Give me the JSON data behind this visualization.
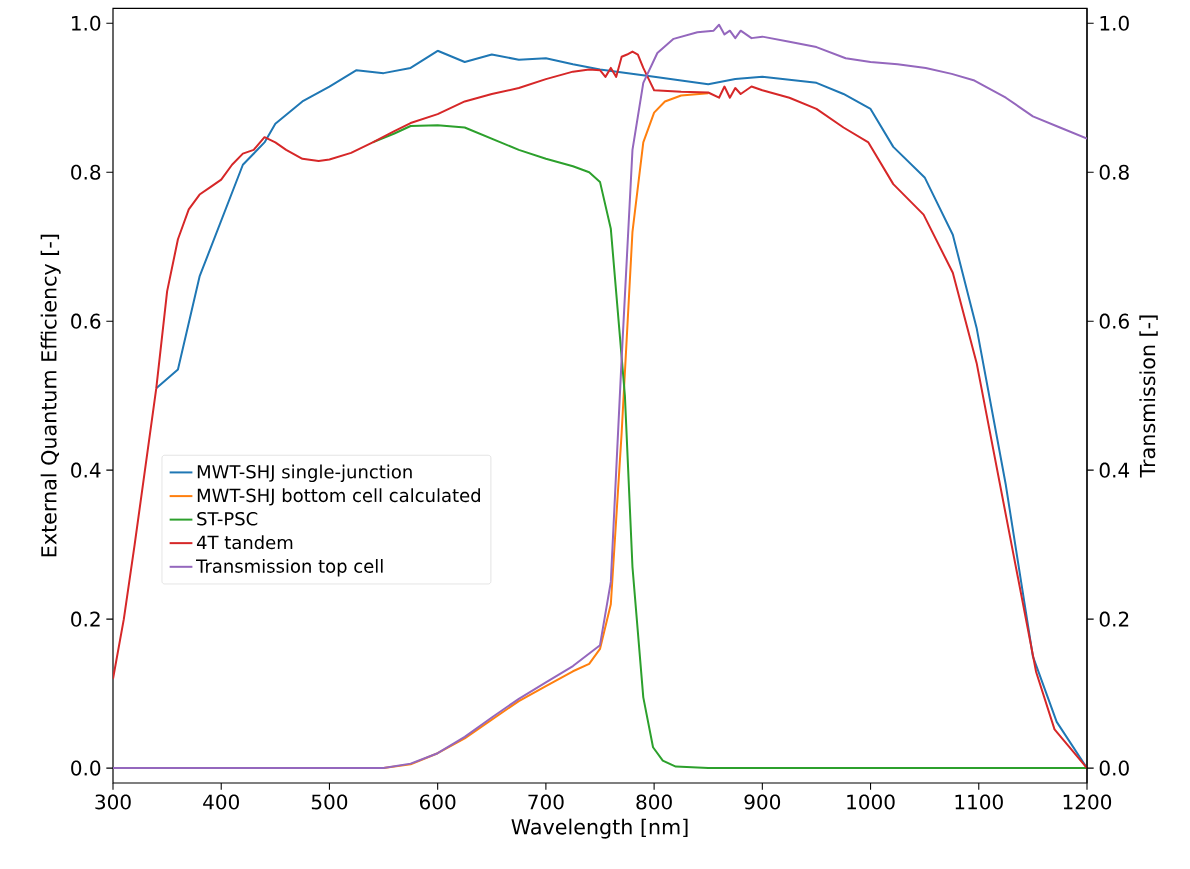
{
  "chart_data": {
    "type": "line",
    "xlabel": "Wavelength [nm]",
    "ylabel": "External Quantum Efficiency [-]",
    "y2label": "Transmission [-]",
    "xlim": [
      300,
      1200
    ],
    "xticks": [
      300,
      400,
      500,
      600,
      700,
      800,
      900,
      1000,
      1100,
      1200
    ],
    "ylim": [
      -0.02,
      1.02
    ],
    "yticks": [
      {
        "value": 0,
        "label": "0.0"
      },
      {
        "value": 0.2,
        "label": "0.2"
      },
      {
        "value": 0.4,
        "label": "0.4"
      },
      {
        "value": 0.6,
        "label": "0.6"
      },
      {
        "value": 0.8,
        "label": "0.8"
      },
      {
        "value": 1,
        "label": "1.0"
      }
    ],
    "y2lim": [
      -0.02,
      1.02
    ],
    "y2ticks": [
      {
        "value": 0,
        "label": "0.0"
      },
      {
        "value": 0.2,
        "label": "0.2"
      },
      {
        "value": 0.4,
        "label": "0.4"
      },
      {
        "value": 0.6,
        "label": "0.6"
      },
      {
        "value": 0.8,
        "label": "0.8"
      },
      {
        "value": 1,
        "label": "1.0"
      }
    ],
    "grid": false,
    "legend": "center left",
    "marker": "none",
    "line_style": "solid",
    "series": [
      {
        "name": "MWT-SHJ single-junction",
        "color": "#1f77b4",
        "x": [
          340,
          360,
          380,
          400,
          420,
          440,
          450,
          475,
          500,
          525,
          550,
          575,
          600,
          625,
          650,
          675,
          700,
          725,
          750,
          800,
          850,
          875,
          900,
          950,
          975,
          1000,
          1021,
          1050,
          1076,
          1098,
          1125,
          1150,
          1172,
          1200
        ],
        "values": [
          0.51,
          0.535,
          0.66,
          0.735,
          0.81,
          0.84,
          0.865,
          0.895,
          0.915,
          0.937,
          0.933,
          0.94,
          0.963,
          0.948,
          0.958,
          0.951,
          0.953,
          0.945,
          0.938,
          0.928,
          0.918,
          0.925,
          0.928,
          0.92,
          0.905,
          0.885,
          0.834,
          0.793,
          0.716,
          0.591,
          0.38,
          0.15,
          0.062,
          0.0
        ]
      },
      {
        "name": "MWT-SHJ bottom cell calculated",
        "color": "#ff7f0e",
        "x": [
          300,
          550,
          575,
          600,
          625,
          650,
          675,
          700,
          725,
          740,
          750,
          760,
          770,
          780,
          790,
          800,
          810,
          825,
          850
        ],
        "values": [
          0.0,
          0.0,
          0.005,
          0.02,
          0.04,
          0.065,
          0.09,
          0.11,
          0.13,
          0.14,
          0.16,
          0.22,
          0.45,
          0.72,
          0.84,
          0.88,
          0.895,
          0.903,
          0.906
        ]
      },
      {
        "name": "ST-PSC",
        "color": "#2ca02c",
        "x": [
          540,
          560,
          575,
          600,
          625,
          650,
          675,
          700,
          725,
          740,
          750,
          760,
          773,
          780,
          790,
          799,
          808,
          820,
          850,
          1200
        ],
        "values": [
          0.84,
          0.852,
          0.862,
          0.863,
          0.86,
          0.845,
          0.83,
          0.818,
          0.808,
          0.8,
          0.787,
          0.724,
          0.5,
          0.27,
          0.095,
          0.028,
          0.01,
          0.002,
          0.0,
          0.0
        ]
      },
      {
        "name": "4T tandem",
        "color": "#d62728",
        "x": [
          300,
          310,
          320,
          340,
          350,
          360,
          370,
          380,
          390,
          400,
          410,
          420,
          430,
          440,
          450,
          460,
          475,
          490,
          500,
          520,
          540,
          560,
          575,
          600,
          625,
          650,
          675,
          700,
          725,
          740,
          750,
          755,
          760,
          765,
          770,
          775,
          780,
          785,
          790,
          795,
          800,
          825,
          850,
          860,
          865,
          870,
          875,
          880,
          890,
          900,
          925,
          950,
          975,
          998,
          1021,
          1049,
          1076,
          1098,
          1125,
          1153,
          1170,
          1200
        ],
        "values": [
          0.12,
          0.2,
          0.3,
          0.51,
          0.64,
          0.71,
          0.75,
          0.77,
          0.78,
          0.79,
          0.81,
          0.825,
          0.83,
          0.847,
          0.84,
          0.83,
          0.818,
          0.815,
          0.817,
          0.826,
          0.84,
          0.855,
          0.866,
          0.878,
          0.895,
          0.905,
          0.913,
          0.925,
          0.935,
          0.938,
          0.937,
          0.928,
          0.94,
          0.928,
          0.955,
          0.958,
          0.962,
          0.958,
          0.94,
          0.925,
          0.91,
          0.908,
          0.907,
          0.9,
          0.915,
          0.9,
          0.913,
          0.905,
          0.915,
          0.91,
          0.9,
          0.885,
          0.86,
          0.84,
          0.784,
          0.743,
          0.665,
          0.544,
          0.34,
          0.129,
          0.052,
          0.0
        ]
      },
      {
        "name": "Transmission top cell",
        "color": "#9467bd",
        "axis": "y2",
        "x": [
          300,
          550,
          575,
          600,
          625,
          650,
          675,
          700,
          725,
          750,
          760,
          770,
          780,
          790,
          803,
          818,
          840,
          855,
          860,
          865,
          870,
          875,
          880,
          890,
          900,
          925,
          950,
          977,
          1000,
          1025,
          1051,
          1075,
          1096,
          1125,
          1150,
          1175,
          1200
        ],
        "values": [
          0.0,
          0.0,
          0.006,
          0.02,
          0.042,
          0.068,
          0.093,
          0.115,
          0.137,
          0.165,
          0.25,
          0.55,
          0.83,
          0.92,
          0.96,
          0.979,
          0.988,
          0.99,
          0.998,
          0.985,
          0.99,
          0.98,
          0.99,
          0.98,
          0.982,
          0.975,
          0.968,
          0.953,
          0.948,
          0.945,
          0.94,
          0.932,
          0.923,
          0.9,
          0.875,
          0.86,
          0.845
        ]
      }
    ]
  }
}
